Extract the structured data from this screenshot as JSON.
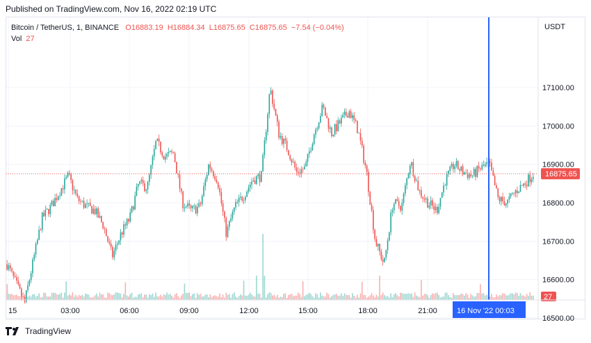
{
  "header": {
    "published": "Published on TradingView.com, Nov 16, 2022 02:19 UTC"
  },
  "legend": {
    "symbol": "Bitcoin / TetherUS, 1, BINANCE",
    "open": "O16883.19",
    "high": "H16884.34",
    "low": "L16875.65",
    "close": "C16875.65",
    "change": "−7.54 (−0.04%)",
    "vol_label": "Vol",
    "vol_value": "27"
  },
  "footer": {
    "brand": "TradingView"
  },
  "colors": {
    "up": "#26a69a",
    "down": "#ef5350",
    "crosshair": "#2962ff",
    "grid": "#f0f3fa"
  },
  "chart_data": {
    "type": "candlestick",
    "currency": "USDT",
    "x_ticks": [
      "15",
      "03:00",
      "06:00",
      "09:00",
      "12:00",
      "15:00",
      "18:00",
      "21:00"
    ],
    "y_ticks": [
      16500,
      16600,
      16700,
      16800,
      16900,
      17000,
      17100
    ],
    "ylim": [
      16470,
      17200
    ],
    "last_price": "16875.65",
    "last_volume": "27",
    "crosshair_label": "16 Nov '22   00:03",
    "series": [
      {
        "time": "00:00",
        "price": 16640
      },
      {
        "time": "00:30",
        "price": 16590
      },
      {
        "time": "00:50",
        "price": 16540
      },
      {
        "time": "01:20",
        "price": 16650
      },
      {
        "time": "01:50",
        "price": 16760
      },
      {
        "time": "02:30",
        "price": 16790
      },
      {
        "time": "03:00",
        "price": 16830
      },
      {
        "time": "03:20",
        "price": 16870
      },
      {
        "time": "03:40",
        "price": 16810
      },
      {
        "time": "04:15",
        "price": 16790
      },
      {
        "time": "04:45",
        "price": 16780
      },
      {
        "time": "05:20",
        "price": 16740
      },
      {
        "time": "05:55",
        "price": 16660
      },
      {
        "time": "06:30",
        "price": 16720
      },
      {
        "time": "07:00",
        "price": 16760
      },
      {
        "time": "07:20",
        "price": 16850
      },
      {
        "time": "07:45",
        "price": 16840
      },
      {
        "time": "08:05",
        "price": 16960
      },
      {
        "time": "08:40",
        "price": 16920
      },
      {
        "time": "09:00",
        "price": 16930
      },
      {
        "time": "09:20",
        "price": 16800
      },
      {
        "time": "09:50",
        "price": 16780
      },
      {
        "time": "10:20",
        "price": 16790
      },
      {
        "time": "10:50",
        "price": 16900
      },
      {
        "time": "11:10",
        "price": 16860
      },
      {
        "time": "11:30",
        "price": 16720
      },
      {
        "time": "12:00",
        "price": 16790
      },
      {
        "time": "12:30",
        "price": 16820
      },
      {
        "time": "13:00",
        "price": 16860
      },
      {
        "time": "13:20",
        "price": 16870
      },
      {
        "time": "13:40",
        "price": 17100
      },
      {
        "time": "13:55",
        "price": 16980
      },
      {
        "time": "14:20",
        "price": 16940
      },
      {
        "time": "14:50",
        "price": 16880
      },
      {
        "time": "15:10",
        "price": 16890
      },
      {
        "time": "15:30",
        "price": 16980
      },
      {
        "time": "16:00",
        "price": 17050
      },
      {
        "time": "16:30",
        "price": 16980
      },
      {
        "time": "17:00",
        "price": 17010
      },
      {
        "time": "17:30",
        "price": 17040
      },
      {
        "time": "17:50",
        "price": 16990
      },
      {
        "time": "18:10",
        "price": 16880
      },
      {
        "time": "18:25",
        "price": 16700
      },
      {
        "time": "18:50",
        "price": 16640
      },
      {
        "time": "19:10",
        "price": 16800
      },
      {
        "time": "19:40",
        "price": 16790
      },
      {
        "time": "20:00",
        "price": 16910
      },
      {
        "time": "20:20",
        "price": 16830
      },
      {
        "time": "20:50",
        "price": 16800
      },
      {
        "time": "21:10",
        "price": 16780
      },
      {
        "time": "21:40",
        "price": 16860
      },
      {
        "time": "22:00",
        "price": 16900
      },
      {
        "time": "22:30",
        "price": 16880
      },
      {
        "time": "23:00",
        "price": 16870
      },
      {
        "time": "23:30",
        "price": 16890
      },
      {
        "time": "00:03",
        "price": 16900
      },
      {
        "time": "00:30",
        "price": 16810
      },
      {
        "time": "01:00",
        "price": 16800
      },
      {
        "time": "01:30",
        "price": 16830
      },
      {
        "time": "02:00",
        "price": 16850
      },
      {
        "time": "02:19",
        "price": 16875.65
      }
    ]
  }
}
